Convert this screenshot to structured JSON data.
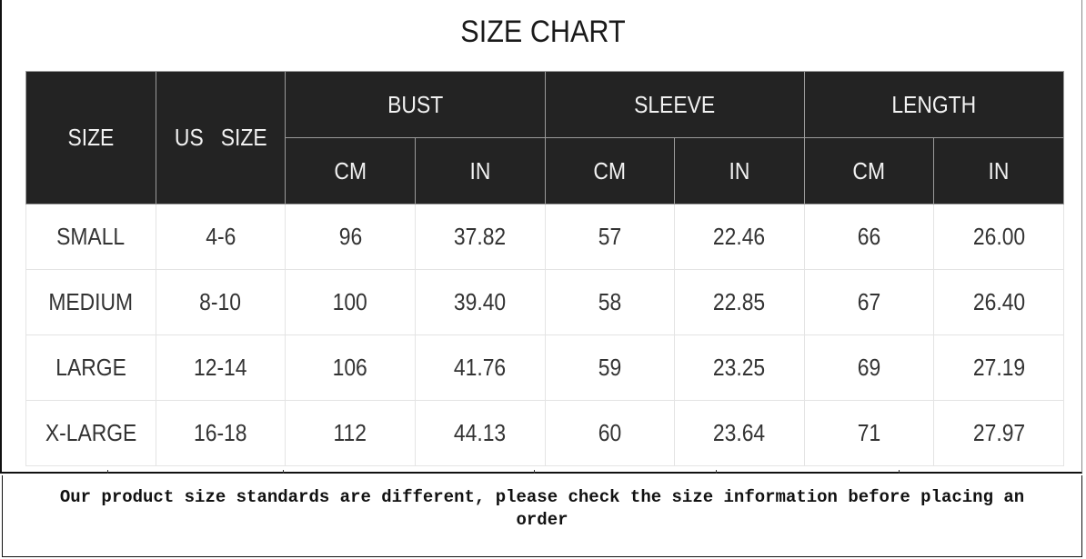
{
  "title": "SIZE CHART",
  "headers": {
    "size": "SIZE",
    "us_size": "US   SIZE",
    "groups": [
      "BUST",
      "SLEEVE",
      "LENGTH"
    ],
    "units": [
      "CM",
      "IN",
      "CM",
      "IN",
      "CM",
      "IN"
    ]
  },
  "rows": [
    [
      "SMALL",
      "4-6",
      "96",
      "37.82",
      "57",
      "22.46",
      "66",
      "26.00"
    ],
    [
      "MEDIUM",
      "8-10",
      "100",
      "39.40",
      "58",
      "22.85",
      "67",
      "26.40"
    ],
    [
      "LARGE",
      "12-14",
      "106",
      "41.76",
      "59",
      "23.25",
      "69",
      "27.19"
    ],
    [
      "X-LARGE",
      "16-18",
      "112",
      "44.13",
      "60",
      "23.64",
      "71",
      "27.97"
    ]
  ],
  "note": "Our product size standards are different, please check the size information before placing an order"
}
